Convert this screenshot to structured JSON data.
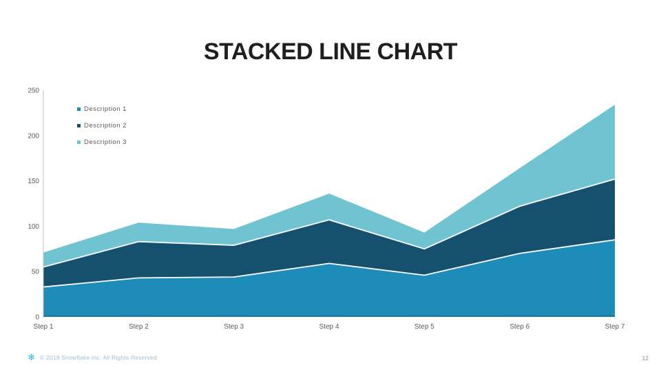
{
  "title": "STACKED LINE CHART",
  "footer": {
    "copyright": "© 2019 Snowflake Inc. All Rights Reserved",
    "page_number": "12",
    "logo_icon": "snowflake-icon",
    "logo_glyph": "❄",
    "logo_color": "#29B5E8"
  },
  "chart_data": {
    "type": "area",
    "stacked": true,
    "title": "STACKED LINE CHART",
    "categories": [
      "Step 1",
      "Step 2",
      "Step 3",
      "Step 4",
      "Step 5",
      "Step 6",
      "Step 7"
    ],
    "series": [
      {
        "name": "Description 1",
        "color": "#1E8CB8",
        "values": [
          33,
          43,
          44,
          59,
          46,
          70,
          85
        ]
      },
      {
        "name": "Description 2",
        "color": "#16506F",
        "values": [
          22,
          40,
          35,
          48,
          29,
          52,
          67
        ]
      },
      {
        "name": "Description 3",
        "color": "#70C4D2",
        "values": [
          16,
          21,
          18,
          29,
          18,
          42,
          82
        ]
      }
    ],
    "cumulative_totals": [
      71,
      104,
      97,
      136,
      93,
      164,
      234
    ],
    "ylim": [
      0,
      250
    ],
    "y_ticks": [
      0,
      50,
      100,
      150,
      200,
      250
    ],
    "grid": false,
    "legend_position": "top-left",
    "separator_color": "#FFFFFF",
    "axis_color": "#BFBFBF",
    "baseline_shade_color": "#14506E",
    "tick_label_color": "#595959",
    "xlabel": "",
    "ylabel": ""
  }
}
